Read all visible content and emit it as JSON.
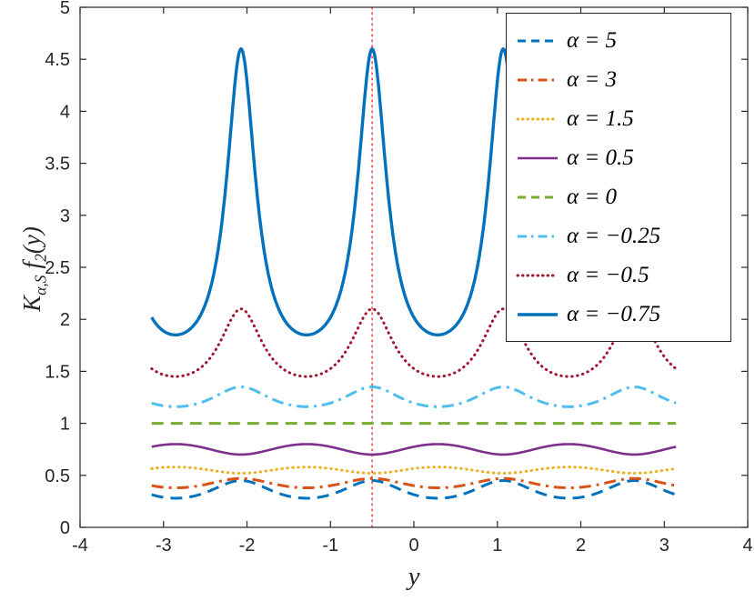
{
  "chart_data": {
    "type": "line",
    "title": "",
    "xlabel": "y",
    "ylabel": "K_{α,S} f_2(y)",
    "ylabel_parts": {
      "op": "K",
      "op_sub": "α,S",
      "fn": "f",
      "fn_sub": "2",
      "arg": "(y)"
    },
    "xlim": [
      -4,
      4
    ],
    "ylim": [
      0,
      5
    ],
    "xticks": [
      -4,
      -3,
      -2,
      -1,
      0,
      1,
      2,
      3,
      4
    ],
    "yticks": [
      0,
      0.5,
      1,
      1.5,
      2,
      2.5,
      3,
      3.5,
      4,
      4.5,
      5
    ],
    "grid": false,
    "legend_position": "northeast",
    "x_range": [
      -3.14159,
      3.14159
    ],
    "period": 1.5708,
    "phase_center": -0.5,
    "peak_positions": [
      -2.0708,
      -0.5,
      1.0708,
      2.6416
    ],
    "vline": {
      "x": -0.5,
      "color": "#FF4545",
      "style": "dotted"
    },
    "axis_color": "#262626",
    "series": [
      {
        "label": "α = 5",
        "alpha": 5,
        "color": "#0072BD",
        "style": "dashed",
        "width": 3,
        "y_min": 0.28,
        "y_max": 0.45,
        "phase": "peak",
        "sharpness": 0.12
      },
      {
        "label": "α = 3",
        "alpha": 3,
        "color": "#D95319",
        "style": "dashdot",
        "width": 3,
        "y_min": 0.38,
        "y_max": 0.47,
        "phase": "peak",
        "sharpness": 0.08
      },
      {
        "label": "α = 1.5",
        "alpha": 1.5,
        "color": "#EDB120",
        "style": "dotted",
        "width": 3,
        "y_min": 0.52,
        "y_max": 0.58,
        "phase": "trough",
        "sharpness": 0.05
      },
      {
        "label": "α = 0.5",
        "alpha": 0.5,
        "color": "#7E2F8E",
        "style": "solid",
        "width": 2.6,
        "y_min": 0.7,
        "y_max": 0.8,
        "phase": "trough",
        "sharpness": 0.05
      },
      {
        "label": "α = 0",
        "alpha": 0,
        "color": "#77AC30",
        "style": "dashed",
        "width": 3,
        "y_min": 1.0,
        "y_max": 1.0,
        "phase": "peak",
        "sharpness": 0.05
      },
      {
        "label": "α = −0.25",
        "alpha": -0.25,
        "color": "#4DBEEE",
        "style": "dashdot",
        "width": 3,
        "y_min": 1.16,
        "y_max": 1.35,
        "phase": "peak",
        "sharpness": 0.15
      },
      {
        "label": "α = −0.5",
        "alpha": -0.5,
        "color": "#A2142F",
        "style": "dotted",
        "width": 3,
        "y_min": 1.45,
        "y_max": 2.1,
        "phase": "peak",
        "sharpness": 0.28
      },
      {
        "label": "α = −0.75",
        "alpha": -0.75,
        "color": "#0072BD",
        "style": "solid",
        "width": 3.4,
        "y_min": 1.85,
        "y_max": 4.6,
        "phase": "peak",
        "sharpness": 0.43
      }
    ]
  }
}
